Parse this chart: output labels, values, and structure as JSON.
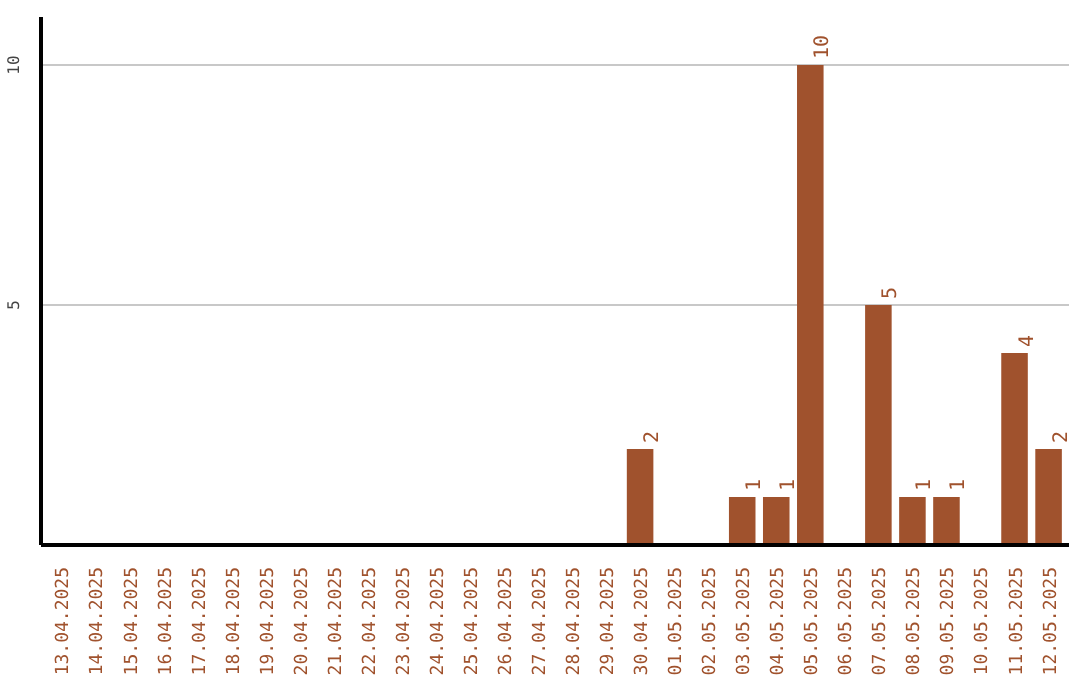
{
  "chart_data": {
    "type": "bar",
    "categories": [
      "13.04.2025",
      "14.04.2025",
      "15.04.2025",
      "16.04.2025",
      "17.04.2025",
      "18.04.2025",
      "19.04.2025",
      "20.04.2025",
      "21.04.2025",
      "22.04.2025",
      "23.04.2025",
      "24.04.2025",
      "25.04.2025",
      "26.04.2025",
      "27.04.2025",
      "28.04.2025",
      "29.04.2025",
      "30.04.2025",
      "01.05.2025",
      "02.05.2025",
      "03.05.2025",
      "04.05.2025",
      "05.05.2025",
      "06.05.2025",
      "07.05.2025",
      "08.05.2025",
      "09.05.2025",
      "10.05.2025",
      "11.05.2025",
      "12.05.2025"
    ],
    "values": [
      0,
      0,
      0,
      0,
      0,
      0,
      0,
      0,
      0,
      0,
      0,
      0,
      0,
      0,
      0,
      0,
      0,
      2,
      0,
      0,
      1,
      1,
      10,
      0,
      5,
      1,
      1,
      0,
      4,
      2
    ],
    "value_labels": [
      null,
      null,
      null,
      null,
      null,
      null,
      null,
      null,
      null,
      null,
      null,
      null,
      null,
      null,
      null,
      null,
      null,
      "2",
      null,
      null,
      "1",
      "1",
      "10",
      null,
      "5",
      "1",
      "1",
      null,
      "4",
      "2"
    ],
    "color": "#a0522d",
    "ylim": [
      0,
      11
    ],
    "yticks": [
      5,
      10
    ],
    "grid": "y"
  }
}
